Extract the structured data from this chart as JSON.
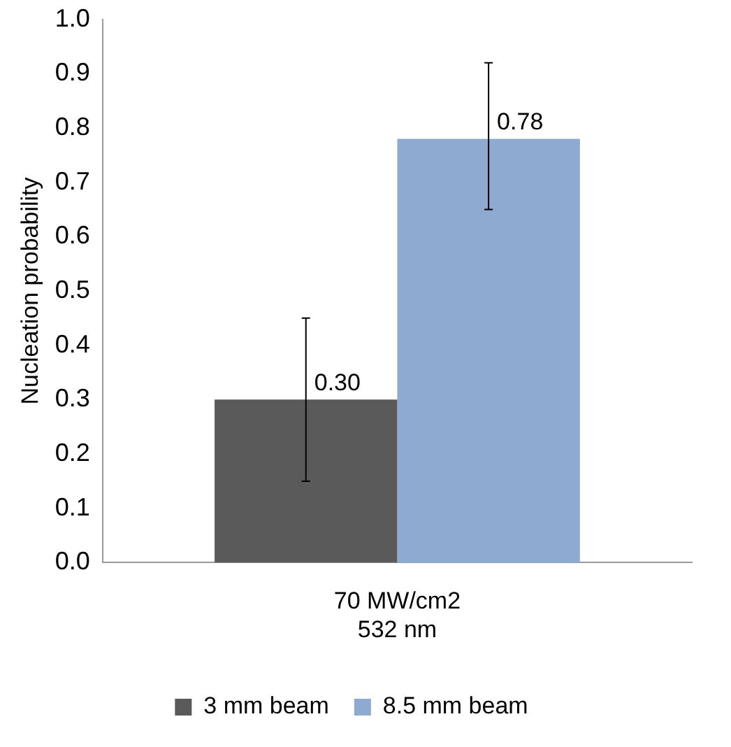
{
  "chart_data": {
    "type": "bar",
    "ylabel": "Nucleation probability",
    "categories": [
      "70 MW/cm2\n532 nm"
    ],
    "series": [
      {
        "name": "3 mm beam",
        "color": "#5a5a5a",
        "values": [
          0.3
        ],
        "value_labels": [
          "0.30"
        ],
        "errors": [
          0.15
        ]
      },
      {
        "name": "8.5 mm beam",
        "color": "#8eaad0",
        "values": [
          0.78
        ],
        "value_labels": [
          "0.78"
        ],
        "errors": [
          [
            0.65,
            0.92
          ]
        ]
      }
    ],
    "ylim": [
      0,
      1.0
    ],
    "yticks": [
      {
        "value": 0,
        "label": "0.0"
      },
      {
        "value": 0.1,
        "label": "0.1"
      },
      {
        "value": 0.2,
        "label": "0.2"
      },
      {
        "value": 0.3,
        "label": "0.3"
      },
      {
        "value": 0.4,
        "label": "0.4"
      },
      {
        "value": 0.5,
        "label": "0.5"
      },
      {
        "value": 0.6,
        "label": "0.6"
      },
      {
        "value": 0.7,
        "label": "0.7"
      },
      {
        "value": 0.8,
        "label": "0.8"
      },
      {
        "value": 0.9,
        "label": "0.9"
      },
      {
        "value": 1.0,
        "label": "1.0"
      }
    ],
    "grid": false,
    "legend": "bottom"
  }
}
